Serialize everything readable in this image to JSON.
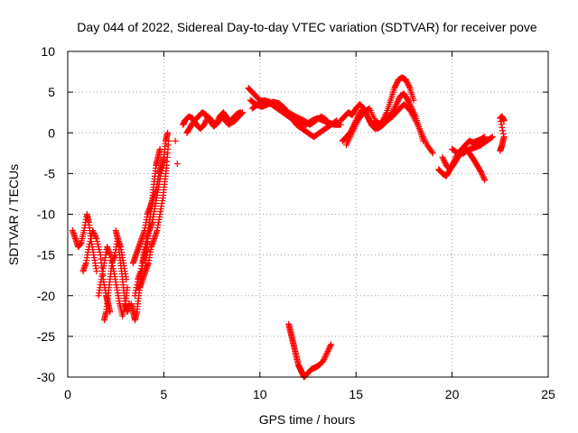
{
  "chart_data": {
    "type": "scatter",
    "title": "Day 044 of 2022, Sidereal Day-to-day VTEC variation (SDTVAR) for receiver pove",
    "xlabel": "GPS time / hours",
    "ylabel": "SDTVAR / TECUs",
    "xlim": [
      0,
      25
    ],
    "ylim": [
      -30,
      10
    ],
    "xticks": [
      0,
      5,
      10,
      15,
      20,
      25
    ],
    "yticks": [
      -30,
      -25,
      -20,
      -15,
      -10,
      -5,
      0,
      5,
      10
    ],
    "xtick_labels": [
      "0",
      "5",
      "10",
      "15",
      "20",
      "25"
    ],
    "ytick_labels": [
      "-30",
      "-25",
      "-20",
      "-15",
      "-10",
      "-5",
      "0",
      "5",
      "10"
    ],
    "grid": true,
    "marker": "+",
    "color": "#ff0000",
    "series": [
      {
        "name": "SDTVAR",
        "x": [
          0.25,
          0.4,
          0.55,
          0.7,
          0.85,
          1.0,
          1.1,
          1.2,
          1.35,
          1.5
        ],
        "y": [
          -12,
          -13,
          -14,
          -13.5,
          -12,
          -10,
          -11,
          -13,
          -15,
          -17
        ]
      },
      {
        "name": "SDTVAR",
        "x": [
          0.8,
          0.95,
          1.1,
          1.3,
          1.5,
          1.7,
          1.85,
          2.0,
          2.1,
          2.2
        ],
        "y": [
          -17,
          -16,
          -14,
          -12,
          -13,
          -15,
          -18,
          -20,
          -21,
          -22
        ]
      },
      {
        "name": "SDTVAR",
        "x": [
          1.6,
          1.75,
          1.9,
          2.05,
          2.2,
          2.4,
          2.55,
          2.7,
          2.85,
          3.0,
          3.1
        ],
        "y": [
          -20,
          -18,
          -16,
          -14,
          -15,
          -17,
          -19,
          -21,
          -22.5,
          -21,
          -19
        ]
      },
      {
        "name": "SDTVAR",
        "x": [
          1.9,
          2.0,
          2.1,
          2.2,
          2.3,
          2.45,
          2.6,
          2.75,
          2.9,
          3.05
        ],
        "y": [
          -23,
          -22,
          -20,
          -18,
          -16,
          -15,
          -13,
          -14,
          -16,
          -18
        ]
      },
      {
        "name": "SDTVAR",
        "x": [
          2.5,
          2.6,
          2.7,
          2.8,
          2.9,
          3.0,
          3.1,
          3.2
        ],
        "y": [
          -12,
          -13,
          -15,
          -17,
          -19,
          -21,
          -22,
          -21
        ]
      },
      {
        "name": "SDTVAR",
        "x": [
          3.3,
          3.4,
          3.5,
          3.6,
          3.7,
          3.8,
          3.9,
          4.0,
          4.1,
          4.2,
          4.3
        ],
        "y": [
          -21,
          -22,
          -23,
          -22,
          -20,
          -18,
          -16,
          -15,
          -14,
          -12,
          -10
        ]
      },
      {
        "name": "SDTVAR",
        "x": [
          3.4,
          3.55,
          3.7,
          3.85,
          4.0,
          4.15,
          4.3,
          4.45,
          4.6,
          4.75,
          4.9,
          5.0
        ],
        "y": [
          -16,
          -15,
          -14,
          -13,
          -12,
          -10,
          -9,
          -8,
          -7,
          -5,
          -4,
          -3
        ]
      },
      {
        "name": "SDTVAR",
        "x": [
          3.5,
          3.65,
          3.8,
          3.95,
          4.1,
          4.25,
          4.4,
          4.55,
          4.7,
          4.85,
          5.0,
          5.1,
          5.2
        ],
        "y": [
          -20,
          -18,
          -17,
          -15,
          -13,
          -12,
          -11,
          -9,
          -7,
          -5,
          -3,
          -1,
          0
        ]
      },
      {
        "name": "SDTVAR",
        "x": [
          3.6,
          3.75,
          3.9,
          4.05,
          4.2,
          4.35,
          4.5,
          4.65,
          4.8,
          4.95,
          5.05,
          5.15,
          5.25
        ],
        "y": [
          -19,
          -19,
          -18,
          -17,
          -16,
          -14,
          -13,
          -12,
          -10,
          -8,
          -6,
          -4,
          -1
        ]
      },
      {
        "name": "SDTVAR",
        "x": [
          4.0,
          4.1,
          4.2,
          4.3,
          4.4,
          4.5,
          4.6,
          4.7,
          4.8
        ],
        "y": [
          -17,
          -15,
          -12,
          -10,
          -8,
          -6,
          -4,
          -3,
          -2
        ]
      },
      {
        "name": "SDTVAR",
        "x": [
          5.6,
          5.7
        ],
        "y": [
          -1,
          -3.8
        ]
      },
      {
        "name": "SDTVAR",
        "x": [
          6.0,
          6.1,
          6.3,
          6.5,
          6.7,
          6.9,
          7.1,
          7.3,
          7.5,
          7.7,
          7.9,
          8.1,
          8.3,
          8.5,
          8.7,
          8.9,
          9.1
        ],
        "y": [
          1,
          1.5,
          2,
          1.8,
          1,
          0.5,
          1,
          2,
          1.5,
          1,
          2,
          2.5,
          1.8,
          1.2,
          1.5,
          2,
          2.5
        ]
      },
      {
        "name": "SDTVAR",
        "x": [
          6.2,
          6.4,
          6.6,
          6.8,
          7.0,
          7.2,
          7.4,
          7.6,
          7.8,
          8.0,
          8.2,
          8.4,
          8.6,
          8.8,
          9.0
        ],
        "y": [
          0,
          0.8,
          1.5,
          2,
          2.5,
          2.2,
          1.5,
          0.8,
          1.2,
          2,
          1.5,
          1,
          1.8,
          2.3,
          2.5
        ]
      },
      {
        "name": "SDTVAR",
        "x": [
          9.4,
          9.6,
          9.8,
          10.0,
          10.3,
          10.6,
          10.9,
          11.2,
          11.5,
          11.8,
          12.1,
          12.4,
          12.7,
          13.0,
          13.3,
          13.6,
          13.9,
          14.2
        ],
        "y": [
          5.5,
          5,
          4.5,
          4,
          3.8,
          3.5,
          3,
          2.5,
          2,
          1.5,
          1.2,
          1,
          1.5,
          1.8,
          1.5,
          1.2,
          1,
          1
        ]
      },
      {
        "name": "SDTVAR",
        "x": [
          9.5,
          9.8,
          10.1,
          10.4,
          10.7,
          11.0,
          11.3,
          11.6,
          11.9,
          12.2,
          12.5,
          12.8,
          13.1,
          13.4,
          13.7,
          14.0
        ],
        "y": [
          4,
          3.5,
          3.2,
          3.5,
          3.8,
          3.6,
          3,
          2,
          1,
          0.5,
          0,
          -0.5,
          0,
          0.5,
          1,
          1.5
        ]
      },
      {
        "name": "SDTVAR",
        "x": [
          9.6,
          9.9,
          10.2,
          10.5,
          10.8,
          11.1,
          11.4,
          11.7,
          12.0,
          12.3,
          12.6,
          12.9,
          13.2,
          13.5
        ],
        "y": [
          3,
          3.5,
          4,
          3.8,
          3.4,
          3,
          2.6,
          2.2,
          1.8,
          1.5,
          1,
          1.5,
          2,
          1.5
        ]
      },
      {
        "name": "SDTVAR",
        "x": [
          11.5,
          11.6,
          11.7,
          11.8,
          11.9,
          12.0,
          12.1,
          12.2,
          12.3,
          12.5,
          12.7,
          12.9,
          13.1,
          13.3,
          13.5,
          13.7
        ],
        "y": [
          -23.5,
          -24.5,
          -25.5,
          -26.5,
          -27.5,
          -28.5,
          -29,
          -29.5,
          -30,
          -29.5,
          -29,
          -28.8,
          -28.5,
          -28,
          -27,
          -26
        ]
      },
      {
        "name": "SDTVAR",
        "x": [
          14.2,
          14.4,
          14.6,
          14.8,
          15.0,
          15.2,
          15.4,
          15.6,
          15.8,
          16.0,
          16.2,
          16.4,
          16.6,
          16.8,
          17.0,
          17.2,
          17.4,
          17.6,
          17.8,
          18.0
        ],
        "y": [
          1.5,
          2,
          2.5,
          2.2,
          3,
          3.5,
          3,
          2,
          1,
          0.5,
          1,
          1.5,
          2.5,
          4,
          5.5,
          6.5,
          6.8,
          6.5,
          5.5,
          4
        ]
      },
      {
        "name": "SDTVAR",
        "x": [
          14.3,
          14.5,
          14.7,
          14.9,
          15.1,
          15.3,
          15.5,
          15.7,
          15.9,
          16.1,
          16.3,
          16.5,
          16.7,
          16.9,
          17.1,
          17.3,
          17.5,
          17.7,
          17.9,
          18.1,
          18.3,
          18.5
        ],
        "y": [
          -1,
          -0.5,
          0,
          1,
          2,
          2.8,
          2.5,
          1.5,
          1,
          0.5,
          0.8,
          1.2,
          1.8,
          2.5,
          3.5,
          4.5,
          4.8,
          4,
          3,
          2,
          0.5,
          -1
        ]
      },
      {
        "name": "SDTVAR",
        "x": [
          14.5,
          14.8,
          15.1,
          15.4,
          15.7,
          16.0,
          16.3,
          16.6,
          16.9,
          17.2,
          17.5,
          17.8,
          18.1,
          18.4,
          18.7,
          19.0
        ],
        "y": [
          -1.5,
          0,
          1.5,
          2.5,
          3,
          1.5,
          1,
          1.5,
          2,
          2.8,
          3.5,
          2.8,
          1.5,
          0,
          -1.5,
          -2.5
        ]
      },
      {
        "name": "SDTVAR",
        "x": [
          19.3,
          19.5,
          19.7,
          19.9,
          20.1,
          20.3,
          20.5,
          20.7,
          20.9,
          21.1,
          21.3,
          21.5,
          21.7
        ],
        "y": [
          -4.5,
          -5,
          -5.3,
          -4.5,
          -3.5,
          -2.5,
          -2,
          -1.5,
          -1,
          -1.2,
          -1,
          -0.8,
          -0.5
        ]
      },
      {
        "name": "SDTVAR",
        "x": [
          19.5,
          19.7,
          19.9,
          20.1,
          20.3,
          20.5,
          20.7,
          20.9,
          21.1,
          21.3,
          21.5,
          21.7
        ],
        "y": [
          -3,
          -4,
          -4.5,
          -3.8,
          -3,
          -2.5,
          -2,
          -2.5,
          -3.2,
          -4,
          -4.8,
          -5.8
        ]
      },
      {
        "name": "SDTVAR",
        "x": [
          20.0,
          20.3,
          20.6,
          20.9,
          21.2,
          21.5,
          21.8,
          22.1
        ],
        "y": [
          -2,
          -2.5,
          -2.5,
          -2,
          -1.8,
          -1.5,
          -1,
          -0.5
        ]
      },
      {
        "name": "SDTVAR",
        "x": [
          22.5,
          22.6,
          22.7,
          22.5,
          22.6,
          22.7
        ],
        "y": [
          -2.2,
          -1.5,
          -0.5,
          1.8,
          2,
          1.5
        ]
      }
    ]
  }
}
